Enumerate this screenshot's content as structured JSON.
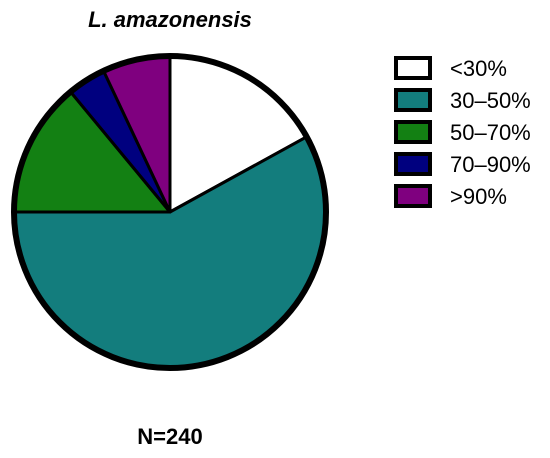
{
  "chart_data": {
    "type": "pie",
    "title": "L. amazonensis",
    "categories": [
      "<30%",
      "30–50%",
      "50–70%",
      "70–90%",
      ">90%"
    ],
    "values": [
      17,
      58,
      14,
      4,
      7
    ],
    "colors": [
      "#ffffff",
      "#137d7d",
      "#138013",
      "#00007f",
      "#7f007f"
    ],
    "start_angle_deg": 0,
    "direction": "clockwise",
    "legend_position": "right",
    "footer": "N=240"
  }
}
